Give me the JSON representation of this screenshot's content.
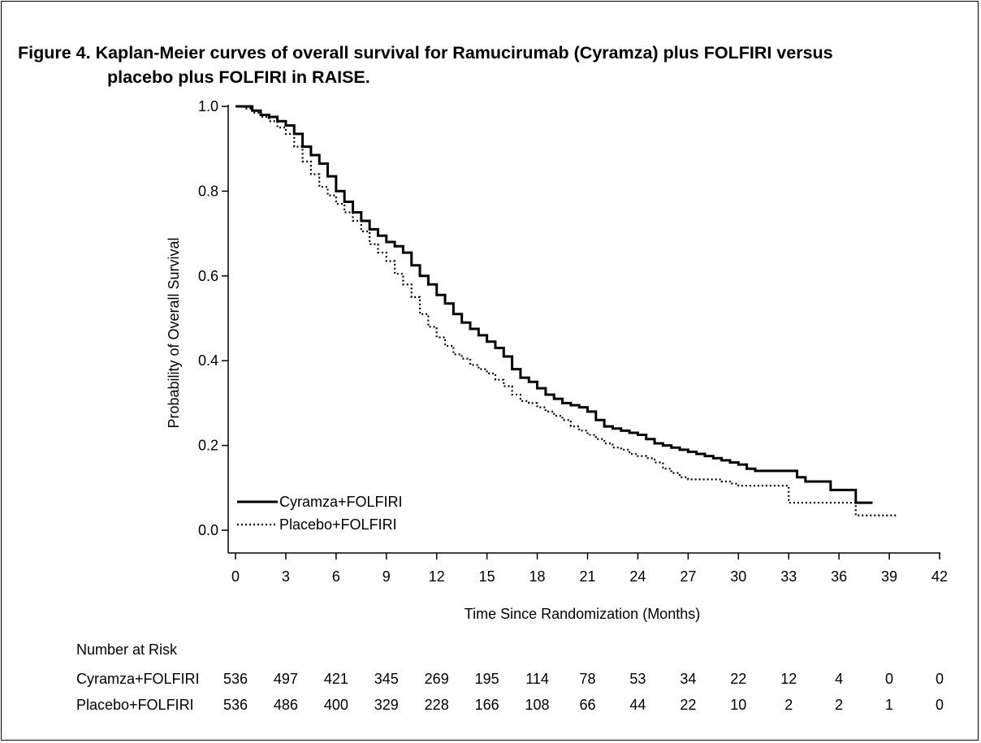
{
  "title_line1": "Figure 4. Kaplan-Meier curves of overall survival for Ramucirumab (Cyramza) plus FOLFIRI versus",
  "title_line2": "placebo plus FOLFIRI in RAISE.",
  "chart_data": {
    "type": "line",
    "title": "Figure 4. Kaplan-Meier curves of overall survival for Ramucirumab (Cyramza) plus FOLFIRI versus placebo plus FOLFIRI in RAISE.",
    "xlabel": "Time Since Randomization (Months)",
    "ylabel": "Probability of Overall Survival",
    "xlim": [
      0,
      42
    ],
    "ylim": [
      0,
      1.0
    ],
    "xticks": [
      0,
      3,
      6,
      9,
      12,
      15,
      18,
      21,
      24,
      27,
      30,
      33,
      36,
      39,
      42
    ],
    "yticks": [
      0.0,
      0.2,
      0.4,
      0.6,
      0.8,
      1.0
    ],
    "ytick_labels": [
      "0.0",
      "0.2",
      "0.4",
      "0.6",
      "0.8",
      "1.0"
    ],
    "legend_position": "bottom-left",
    "grid": false,
    "series": [
      {
        "name": "Cyramza+FOLFIRI",
        "style": "solid",
        "color": "#000000",
        "x": [
          0,
          0.5,
          1,
          1.5,
          2,
          2.5,
          3,
          3.5,
          4,
          4.5,
          5,
          5.5,
          6,
          6.5,
          7,
          7.5,
          8,
          8.5,
          9,
          9.5,
          10,
          10.5,
          11,
          11.5,
          12,
          12.5,
          13,
          13.5,
          14,
          14.5,
          15,
          15.5,
          16,
          16.5,
          17,
          17.5,
          18,
          18.5,
          19,
          19.5,
          20,
          20.5,
          21,
          21.5,
          22,
          22.5,
          23,
          23.5,
          24,
          24.5,
          25,
          25.5,
          26,
          26.5,
          27,
          27.5,
          28,
          28.5,
          29,
          29.5,
          30,
          30.5,
          31,
          31.5,
          32,
          32.5,
          33,
          33.5,
          34,
          34.5,
          35,
          35.5,
          36,
          36.5,
          37,
          37.5,
          38
        ],
        "y": [
          1.0,
          1.0,
          0.99,
          0.98,
          0.975,
          0.965,
          0.955,
          0.935,
          0.905,
          0.885,
          0.865,
          0.835,
          0.8,
          0.775,
          0.75,
          0.73,
          0.71,
          0.695,
          0.68,
          0.67,
          0.655,
          0.625,
          0.6,
          0.58,
          0.555,
          0.535,
          0.51,
          0.49,
          0.475,
          0.46,
          0.445,
          0.43,
          0.41,
          0.38,
          0.36,
          0.35,
          0.335,
          0.32,
          0.31,
          0.3,
          0.295,
          0.29,
          0.28,
          0.26,
          0.245,
          0.24,
          0.235,
          0.23,
          0.225,
          0.215,
          0.205,
          0.2,
          0.195,
          0.19,
          0.185,
          0.18,
          0.175,
          0.17,
          0.165,
          0.16,
          0.155,
          0.145,
          0.14,
          0.14,
          0.14,
          0.14,
          0.14,
          0.125,
          0.115,
          0.115,
          0.115,
          0.095,
          0.095,
          0.095,
          0.065,
          0.065,
          0.065
        ]
      },
      {
        "name": "Placebo+FOLFIRI",
        "style": "dotted",
        "color": "#000000",
        "x": [
          0,
          0.5,
          1,
          1.5,
          2,
          2.5,
          3,
          3.5,
          4,
          4.5,
          5,
          5.5,
          6,
          6.5,
          7,
          7.5,
          8,
          8.5,
          9,
          9.5,
          10,
          10.5,
          11,
          11.5,
          12,
          12.5,
          13,
          13.5,
          14,
          14.5,
          15,
          15.5,
          16,
          16.5,
          17,
          17.5,
          18,
          18.5,
          19,
          19.5,
          20,
          20.5,
          21,
          21.5,
          22,
          22.5,
          23,
          23.5,
          24,
          24.5,
          25,
          25.5,
          26,
          26.5,
          27,
          27.5,
          28,
          28.5,
          29,
          29.5,
          30,
          30.5,
          31,
          31.5,
          32,
          32.5,
          33,
          33.5,
          34,
          34.5,
          35,
          35.5,
          36,
          36.5,
          37,
          37.5,
          38,
          38.5,
          39,
          39.5
        ],
        "y": [
          1.0,
          0.995,
          0.985,
          0.975,
          0.965,
          0.95,
          0.935,
          0.905,
          0.87,
          0.84,
          0.81,
          0.79,
          0.77,
          0.75,
          0.73,
          0.705,
          0.675,
          0.655,
          0.635,
          0.605,
          0.58,
          0.55,
          0.51,
          0.48,
          0.455,
          0.435,
          0.415,
          0.405,
          0.39,
          0.38,
          0.37,
          0.355,
          0.34,
          0.32,
          0.305,
          0.3,
          0.29,
          0.28,
          0.27,
          0.26,
          0.245,
          0.235,
          0.225,
          0.215,
          0.205,
          0.195,
          0.19,
          0.18,
          0.175,
          0.17,
          0.16,
          0.145,
          0.135,
          0.125,
          0.12,
          0.12,
          0.12,
          0.12,
          0.115,
          0.11,
          0.105,
          0.105,
          0.105,
          0.105,
          0.105,
          0.105,
          0.065,
          0.065,
          0.065,
          0.065,
          0.065,
          0.065,
          0.065,
          0.065,
          0.035,
          0.035,
          0.035,
          0.035,
          0.035,
          0.035
        ]
      }
    ],
    "risk_table": {
      "title": "Number at Risk",
      "times": [
        0,
        3,
        6,
        9,
        12,
        15,
        18,
        21,
        24,
        27,
        30,
        33,
        36,
        39,
        42
      ],
      "rows": [
        {
          "label": "Cyramza+FOLFIRI",
          "values": [
            "536",
            "497",
            "421",
            "345",
            "269",
            "195",
            "114",
            "78",
            "53",
            "34",
            "22",
            "12",
            "4",
            "0",
            "0"
          ]
        },
        {
          "label": "Placebo+FOLFIRI",
          "values": [
            "536",
            "486",
            "400",
            "329",
            "228",
            "166",
            "108",
            "66",
            "44",
            "22",
            "10",
            "2",
            "2",
            "1",
            "0"
          ]
        }
      ]
    }
  }
}
